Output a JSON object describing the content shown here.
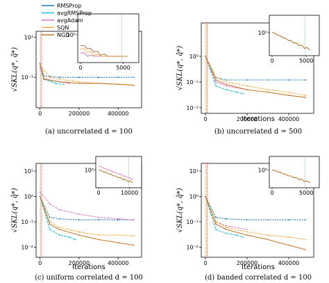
{
  "figure": {
    "legend": [
      {
        "name": "RMSProp",
        "color": "#1f77b4"
      },
      {
        "name": "avgRMSProp",
        "color": "#17becf"
      },
      {
        "name": "avgAdam",
        "color": "#e377c2"
      },
      {
        "name": "SQN",
        "color": "#f6a945"
      },
      {
        "name": "NGD",
        "color": "#c27a2c"
      }
    ],
    "ylabel": "√SKL(q*, q̂*)",
    "xlabel": "Iterations"
  },
  "chart_data": [
    {
      "id": "a",
      "type": "line",
      "caption": "(a) uncorrelated d = 100",
      "xlabel": "",
      "ylabel": "√SKL(q*, q̂*)",
      "yscale": "log",
      "ylim": [
        0.003,
        20
      ],
      "xlim": [
        -20000,
        520000
      ],
      "xticks": [
        0,
        200000,
        400000
      ],
      "xticklabels": [
        "0",
        "200000",
        "400000"
      ],
      "yticks": [
        0.1,
        10
      ],
      "yticklabels": [
        "10⁻¹",
        "10¹"
      ],
      "series": [
        {
          "name": "RMSProp",
          "x": [
            0,
            20000,
            50000,
            100000,
            200000,
            300000,
            400000,
            480000
          ],
          "y": [
            0.5,
            0.12,
            0.11,
            0.1,
            0.1,
            0.1,
            0.1,
            0.1
          ]
        },
        {
          "name": "avgRMSProp",
          "x": [
            0,
            20000,
            60000,
            80000,
            120000
          ],
          "y": [
            0.3,
            0.08,
            0.06,
            0.05,
            0.045
          ]
        },
        {
          "name": "avgAdam",
          "x": [
            0,
            20000,
            60000,
            100000,
            150000
          ],
          "y": [
            0.3,
            0.09,
            0.07,
            0.06,
            0.05
          ]
        },
        {
          "name": "SQN",
          "x": [
            0,
            50000,
            100000,
            200000,
            300000,
            400000,
            480000
          ],
          "y": [
            0.4,
            0.1,
            0.08,
            0.06,
            0.05,
            0.045,
            0.04
          ]
        },
        {
          "name": "NGD",
          "x": [
            0,
            20000,
            100000,
            200000,
            300000,
            400000,
            480000
          ],
          "y": [
            0.5,
            0.08,
            0.06,
            0.05,
            0.05,
            0.045,
            0.04
          ]
        }
      ],
      "inset": {
        "xticks": [
          0,
          5000
        ],
        "xticklabels": [
          "0",
          "5000"
        ],
        "yticks": [
          1
        ],
        "yticklabels": [
          "10⁰"
        ]
      }
    },
    {
      "id": "b",
      "type": "line",
      "caption": "(b) uncorrelated d = 500",
      "xlabel": "Iterations",
      "ylabel": "√SKL(q*, q̂*)",
      "yscale": "log",
      "ylim": [
        0.006,
        20
      ],
      "xlim": [
        -20000,
        520000
      ],
      "xticks": [
        0,
        200000,
        400000
      ],
      "xticklabels": [
        "0",
        "200000",
        "400000"
      ],
      "yticks": [
        0.01,
        0.1,
        1
      ],
      "yticklabels": [
        "10⁻²",
        "10⁻¹",
        "10⁰"
      ],
      "series": [
        {
          "name": "RMSProp",
          "x": [
            0,
            50000,
            100000,
            200000,
            300000,
            400000,
            480000
          ],
          "y": [
            1.0,
            0.15,
            0.12,
            0.12,
            0.12,
            0.12,
            0.12
          ]
        },
        {
          "name": "avgRMSProp",
          "x": [
            0,
            50000,
            100000,
            150000,
            180000
          ],
          "y": [
            1.0,
            0.07,
            0.05,
            0.04,
            0.035
          ]
        },
        {
          "name": "avgAdam",
          "x": [
            0,
            50000,
            100000,
            200000
          ],
          "y": [
            1.0,
            0.1,
            0.07,
            0.05
          ]
        },
        {
          "name": "SQN",
          "x": [
            0,
            50000,
            100000,
            200000,
            300000,
            400000,
            480000
          ],
          "y": [
            1.0,
            0.15,
            0.1,
            0.07,
            0.05,
            0.04,
            0.03
          ]
        },
        {
          "name": "NGD",
          "x": [
            0,
            50000,
            100000,
            200000,
            300000,
            400000,
            480000
          ],
          "y": [
            1.0,
            0.12,
            0.08,
            0.05,
            0.04,
            0.03,
            0.025
          ]
        }
      ],
      "inset": {
        "xticks": [
          0,
          5000
        ],
        "xticklabels": [
          "0",
          "5000"
        ],
        "yticks": [
          1
        ],
        "yticklabels": [
          "10⁰"
        ]
      }
    },
    {
      "id": "c",
      "type": "line",
      "caption": "(c) uniform correlated d = 100",
      "xlabel": "Iterations",
      "ylabel": "√SKL(q*, q̂*)",
      "yscale": "log",
      "ylim": [
        0.004,
        20
      ],
      "xlim": [
        -20000,
        520000
      ],
      "xticks": [
        0,
        200000,
        400000
      ],
      "xticklabels": [
        "0",
        "200000",
        "400000"
      ],
      "yticks": [
        0.01,
        0.1,
        1,
        10
      ],
      "yticklabels": [
        "10⁻²",
        "10⁻¹",
        "10⁰",
        "10¹"
      ],
      "series": [
        {
          "name": "RMSProp",
          "x": [
            0,
            50000,
            100000,
            200000,
            300000,
            400000,
            480000
          ],
          "y": [
            1.0,
            0.15,
            0.13,
            0.12,
            0.12,
            0.12,
            0.12
          ]
        },
        {
          "name": "avgRMSProp",
          "x": [
            0,
            50000,
            100000,
            150000,
            180000
          ],
          "y": [
            1.0,
            0.05,
            0.03,
            0.025,
            0.02
          ]
        },
        {
          "name": "avgAdam",
          "x": [
            0,
            50000,
            100000,
            200000,
            300000,
            400000,
            480000
          ],
          "y": [
            1.5,
            0.5,
            0.3,
            0.2,
            0.15,
            0.13,
            0.12
          ]
        },
        {
          "name": "SQN",
          "x": [
            0,
            50000,
            100000,
            200000,
            300000,
            400000,
            480000
          ],
          "y": [
            1.0,
            0.1,
            0.06,
            0.04,
            0.03,
            0.03,
            0.028
          ]
        },
        {
          "name": "NGD",
          "x": [
            0,
            50000,
            100000,
            200000,
            300000,
            400000,
            480000
          ],
          "y": [
            1.0,
            0.08,
            0.05,
            0.03,
            0.02,
            0.015,
            0.012
          ]
        }
      ],
      "inset": {
        "xticks": [
          0,
          10000
        ],
        "xticklabels": [
          "0",
          "10000"
        ],
        "yticks": [
          1
        ],
        "yticklabels": [
          "10⁰"
        ]
      }
    },
    {
      "id": "d",
      "type": "line",
      "caption": "(d) banded correlated d = 100",
      "xlabel": "Iterations",
      "ylabel": "√SKL(q*, q̂*)",
      "yscale": "log",
      "ylim": [
        0.004,
        20
      ],
      "xlim": [
        -20000,
        520000
      ],
      "xticks": [
        0,
        200000,
        400000
      ],
      "xticklabels": [
        "0",
        "200000",
        "400000"
      ],
      "yticks": [
        0.01,
        0.1,
        1,
        10
      ],
      "yticklabels": [
        "10⁻²",
        "10⁻¹",
        "10⁰",
        "10¹"
      ],
      "series": [
        {
          "name": "RMSProp",
          "x": [
            0,
            50000,
            100000,
            200000,
            300000,
            400000,
            480000
          ],
          "y": [
            1.0,
            0.15,
            0.13,
            0.12,
            0.12,
            0.12,
            0.12
          ]
        },
        {
          "name": "avgRMSProp",
          "x": [
            0,
            50000,
            100000,
            150000,
            180000
          ],
          "y": [
            1.0,
            0.05,
            0.035,
            0.03,
            0.025
          ]
        },
        {
          "name": "avgAdam",
          "x": [
            0,
            50000,
            100000,
            200000
          ],
          "y": [
            1.0,
            0.1,
            0.07,
            0.05
          ]
        },
        {
          "name": "SQN",
          "x": [
            0,
            50000,
            100000,
            200000,
            300000,
            400000,
            480000
          ],
          "y": [
            1.0,
            0.1,
            0.06,
            0.04,
            0.03,
            0.025,
            0.02
          ]
        },
        {
          "name": "NGD",
          "x": [
            0,
            50000,
            100000,
            200000,
            300000,
            400000,
            480000
          ],
          "y": [
            1.0,
            0.08,
            0.05,
            0.03,
            0.02,
            0.012,
            0.008
          ]
        }
      ],
      "inset": {
        "xticks": [
          0,
          5000
        ],
        "xticklabels": [
          "0",
          "5000"
        ],
        "yticks": [
          1
        ],
        "yticklabels": [
          "10⁰"
        ]
      }
    }
  ]
}
